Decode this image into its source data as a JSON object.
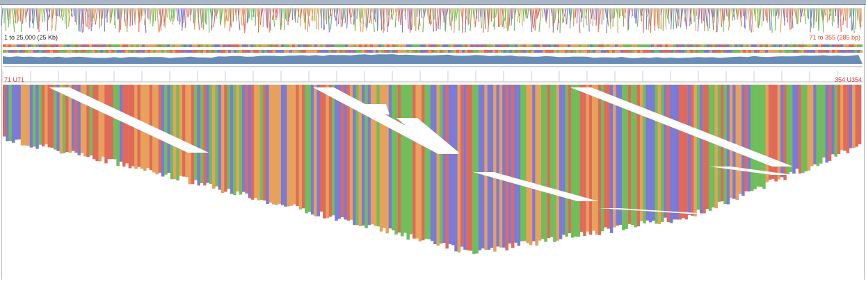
{
  "header": {
    "overview_range": "1 to 25,000 (25 Kb)",
    "view_range": "71 to 355 (285 bp)"
  },
  "ruler": {
    "start_label": "71  U71",
    "end_label": "354  U354"
  },
  "colors": {
    "base_A": "#6fbe5a",
    "base_C": "#7a7ad8",
    "base_G": "#e7a15a",
    "base_T": "#e06a5a",
    "coverage": "#4e78a8",
    "window_border": "#a9b7c8"
  },
  "icons": {
    "reads": "read-alignment-pileup",
    "overview": "chromatogram-overview-icon",
    "coverage": "coverage-track-icon"
  }
}
